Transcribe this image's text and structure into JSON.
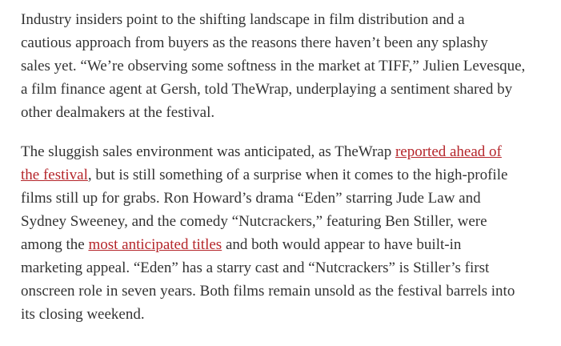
{
  "paragraphs": [
    {
      "lines": [
        [
          {
            "text": "Industry insiders point to the shifting landscape in film distribution and a"
          }
        ],
        [
          {
            "text": "cautious approach from buyers as the reasons there haven’t been any splashy"
          }
        ],
        [
          {
            "text": "sales yet. “We’re observing some softness in the market at TIFF,” Julien Levesque,"
          }
        ],
        [
          {
            "text": "a film finance agent at Gersh, told TheWrap, underplaying a sentiment shared by"
          }
        ],
        [
          {
            "text": "other dealmakers at the festival."
          }
        ]
      ]
    },
    {
      "lines": [
        [
          {
            "text": "The sluggish sales environment was anticipated, as TheWrap "
          },
          {
            "text": "reported ahead of",
            "link": true
          }
        ],
        [
          {
            "text": "the festival",
            "link": true
          },
          {
            "text": ", but is still something of a surprise when it comes to the high-profile"
          }
        ],
        [
          {
            "text": "films still up for grabs. Ron Howard’s drama “Eden” starring Jude Law and"
          }
        ],
        [
          {
            "text": "Sydney Sweeney, and the comedy “Nutcrackers,” featuring Ben Stiller, were"
          }
        ],
        [
          {
            "text": "among the "
          },
          {
            "text": "most anticipated titles",
            "link": true
          },
          {
            "text": " and both would appear to have built-in"
          }
        ],
        [
          {
            "text": "marketing appeal. “Eden” has a starry cast and “Nutcrackers” is Stiller’s first"
          }
        ],
        [
          {
            "text": "onscreen role in seven years. Both films remain unsold as the festival barrels into"
          }
        ],
        [
          {
            "text": "its closing weekend."
          }
        ]
      ]
    }
  ]
}
